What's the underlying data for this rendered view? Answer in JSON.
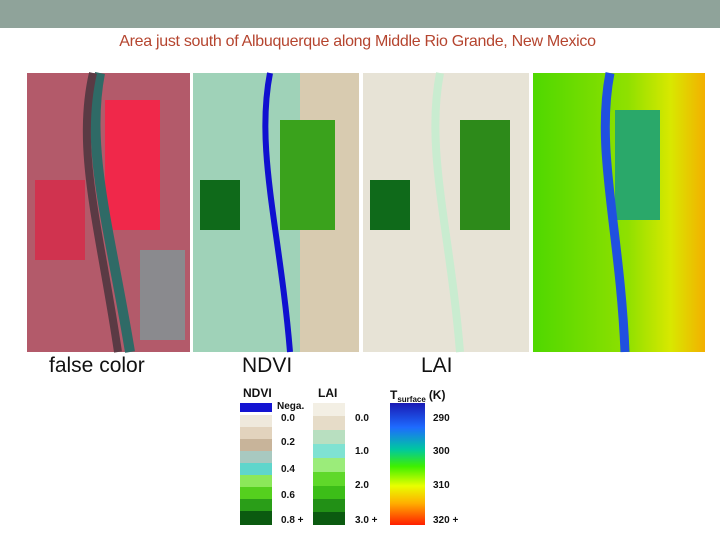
{
  "header": {
    "title": "Area just south of Albuquerque along Middle Rio Grande, New Mexico"
  },
  "panels": [
    {
      "label": "false color"
    },
    {
      "label": "NDVI"
    },
    {
      "label": "LAI"
    }
  ],
  "legends": {
    "ndvi": {
      "title": "NDVI",
      "negative": "Nega.",
      "labels": [
        "0.0",
        "0.2",
        "0.4",
        "0.6",
        "0.8 +"
      ]
    },
    "lai": {
      "title": "LAI",
      "labels": [
        "0.0",
        "1.0",
        "2.0",
        "3.0 +"
      ]
    },
    "tsurface": {
      "symbol": "T",
      "subscript": "surface",
      "unit": "(K)",
      "labels": [
        "290",
        "300",
        "310",
        "320 +"
      ]
    }
  }
}
